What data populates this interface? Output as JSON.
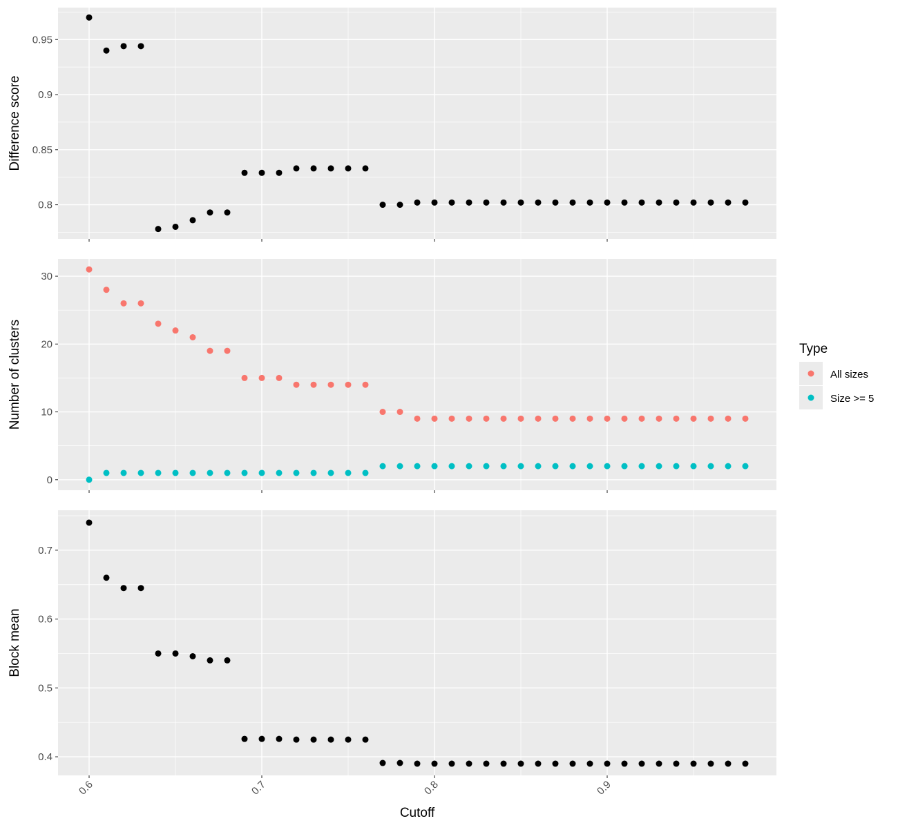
{
  "chart_data": {
    "type": "scatter",
    "xlabel": "Cutoff",
    "x_ticks": [
      0.6,
      0.7,
      0.8,
      0.9
    ],
    "xlim": [
      0.582,
      0.998
    ],
    "grid": true,
    "legend": {
      "title": "Type",
      "placement": "right",
      "entries": [
        {
          "label": "All sizes",
          "color": "#F8766D"
        },
        {
          "label": "Size >= 5",
          "color": "#00BFC4"
        }
      ]
    },
    "x": [
      0.6,
      0.61,
      0.62,
      0.63,
      0.64,
      0.65,
      0.66,
      0.67,
      0.68,
      0.69,
      0.7,
      0.71,
      0.72,
      0.73,
      0.74,
      0.75,
      0.76,
      0.77,
      0.78,
      0.79,
      0.8,
      0.81,
      0.82,
      0.83,
      0.84,
      0.85,
      0.86,
      0.87,
      0.88,
      0.89,
      0.9,
      0.91,
      0.92,
      0.93,
      0.94,
      0.95,
      0.96,
      0.97,
      0.98
    ],
    "panels": [
      {
        "ylabel": "Difference score",
        "ylim": [
          0.769,
          0.979
        ],
        "y_ticks": [
          0.8,
          0.85,
          0.9,
          0.95
        ],
        "series": [
          {
            "color": "#000000",
            "values": [
              0.97,
              0.94,
              0.944,
              0.944,
              0.778,
              0.78,
              0.786,
              0.793,
              0.793,
              0.829,
              0.829,
              0.829,
              0.833,
              0.833,
              0.833,
              0.833,
              0.833,
              0.8,
              0.8,
              0.802,
              0.802,
              0.802,
              0.802,
              0.802,
              0.802,
              0.802,
              0.802,
              0.802,
              0.802,
              0.802,
              0.802,
              0.802,
              0.802,
              0.802,
              0.802,
              0.802,
              0.802,
              0.802,
              0.802
            ]
          }
        ]
      },
      {
        "ylabel": "Number of clusters",
        "ylim": [
          -1.55,
          32.55
        ],
        "y_ticks": [
          0,
          10,
          20,
          30
        ],
        "series": [
          {
            "name": "All sizes",
            "color": "#F8766D",
            "values": [
              31,
              28,
              26,
              26,
              23,
              22,
              21,
              19,
              19,
              15,
              15,
              15,
              14,
              14,
              14,
              14,
              14,
              10,
              10,
              9,
              9,
              9,
              9,
              9,
              9,
              9,
              9,
              9,
              9,
              9,
              9,
              9,
              9,
              9,
              9,
              9,
              9,
              9,
              9
            ]
          },
          {
            "name": "Size >= 5",
            "color": "#00BFC4",
            "values": [
              0,
              1,
              1,
              1,
              1,
              1,
              1,
              1,
              1,
              1,
              1,
              1,
              1,
              1,
              1,
              1,
              1,
              2,
              2,
              2,
              2,
              2,
              2,
              2,
              2,
              2,
              2,
              2,
              2,
              2,
              2,
              2,
              2,
              2,
              2,
              2,
              2,
              2,
              2
            ]
          }
        ]
      },
      {
        "ylabel": "Block mean",
        "ylim": [
          0.373,
          0.758
        ],
        "y_ticks": [
          0.4,
          0.5,
          0.6,
          0.7
        ],
        "series": [
          {
            "color": "#000000",
            "values": [
              0.74,
              0.66,
              0.645,
              0.645,
              0.55,
              0.55,
              0.546,
              0.54,
              0.54,
              0.426,
              0.426,
              0.426,
              0.425,
              0.425,
              0.425,
              0.425,
              0.425,
              0.391,
              0.391,
              0.39,
              0.39,
              0.39,
              0.39,
              0.39,
              0.39,
              0.39,
              0.39,
              0.39,
              0.39,
              0.39,
              0.39,
              0.39,
              0.39,
              0.39,
              0.39,
              0.39,
              0.39,
              0.39,
              0.39
            ]
          }
        ]
      }
    ]
  }
}
